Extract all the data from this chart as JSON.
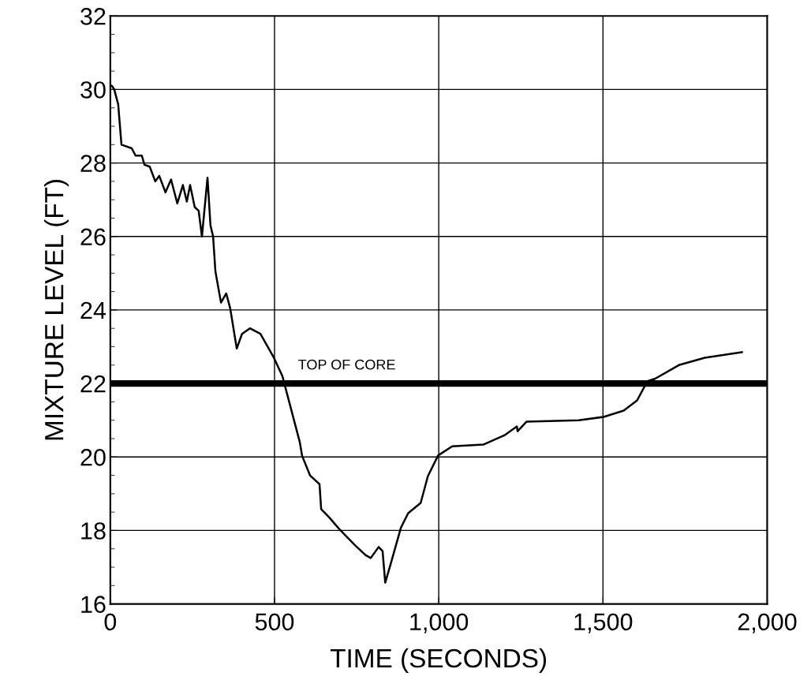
{
  "chart_data": {
    "type": "line",
    "xlabel": "TIME (SECONDS)",
    "ylabel": "MIXTURE LEVEL (FT)",
    "series": [
      {
        "color": "#000000",
        "x": [
          0,
          5,
          12,
          24,
          34,
          65,
          77,
          96,
          104,
          120,
          137,
          149,
          168,
          185,
          204,
          221,
          233,
          243,
          257,
          269,
          279,
          296,
          305,
          313,
          320,
          337,
          353,
          365,
          385,
          401,
          425,
          457,
          498,
          524,
          577,
          584,
          608,
          637,
          642,
          666,
          697,
          745,
          777,
          793,
          817,
          829,
          837,
          854,
          885,
          907,
          945,
          967,
          998,
          1041,
          1137,
          1202,
          1238,
          1240,
          1267,
          1426,
          1502,
          1563,
          1604,
          1635,
          1659,
          1731,
          1810,
          1923
        ],
        "values": [
          30.1,
          30.1,
          30.0,
          29.6,
          28.5,
          28.4,
          28.2,
          28.2,
          27.95,
          27.9,
          27.5,
          27.65,
          27.2,
          27.55,
          26.9,
          27.4,
          26.95,
          27.4,
          26.8,
          26.7,
          26.0,
          27.6,
          26.3,
          26.0,
          25.05,
          24.2,
          24.45,
          24.05,
          22.95,
          23.35,
          23.5,
          23.35,
          22.7,
          22.2,
          20.4,
          20.03,
          19.5,
          19.26,
          18.58,
          18.36,
          18.04,
          17.6,
          17.33,
          17.25,
          17.55,
          17.44,
          16.58,
          17.1,
          18.08,
          18.47,
          18.75,
          19.48,
          20.04,
          20.29,
          20.34,
          20.6,
          20.83,
          20.7,
          20.96,
          21.0,
          21.09,
          21.26,
          21.54,
          22.06,
          22.13,
          22.5,
          22.7,
          22.85
        ]
      }
    ],
    "xlim": [
      0,
      2000
    ],
    "xticks": [
      0,
      500,
      {
        "value": 1000,
        "label": "1,000"
      },
      {
        "value": 1500,
        "label": "1,500"
      },
      {
        "value": 2000,
        "label": "2,000"
      }
    ],
    "ylim": [
      16,
      32
    ],
    "yticks": [
      16,
      18,
      20,
      22,
      24,
      26,
      28,
      30,
      32
    ],
    "ref_lines": [
      {
        "axis": "y",
        "value": 22,
        "label": "TOP OF CORE",
        "color": "#000000"
      }
    ],
    "grid": true,
    "legend": false,
    "line_style": "solid",
    "marker": "none"
  }
}
